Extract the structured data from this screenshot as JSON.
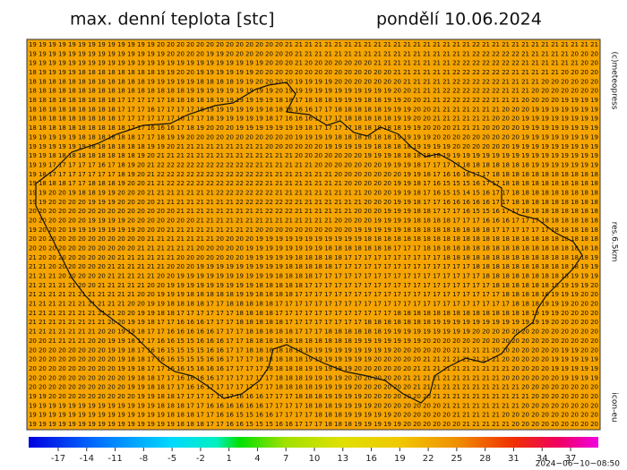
{
  "header": {
    "title": "max. denní teplota [stc]",
    "date": "pondělí 10.06.2024"
  },
  "side_labels": {
    "copyright": "(c)meteopress",
    "resolution": "res.6.5km",
    "model": "icon-eu"
  },
  "timestamp": "2024−06−10−08:50",
  "colorbar_ticks": [
    -17,
    -14,
    -11,
    -8,
    -5,
    -2,
    1,
    4,
    7,
    10,
    13,
    16,
    19,
    22,
    25,
    28,
    31,
    34,
    37
  ],
  "grid_rows": [
    "19 19 19 19 19 19 19 19 19 19 19 19 19 20 20 20 20 20 20 20 20 20 20 20 20 20 21 21 21 21 21 21 21 21 21 21 21 21 21 21 21 21 21 21 21 22 21 21 21 21 21 21 21 21 21 21 21 21",
    "19 19 19 19 19 19 19 19 19 19 19 19 19 19 20 20 20 20 19 19 20 20 20 20 20 20 20 21 21 21 21 21 21 21 21 21 21 21 21 21 21 21 21 21 21 22 22 22 22 22 21 21 21 21 21 20 20 20",
    "19 19 19 19 19 19 19 19 19 19 19 19 19 19 19 19 19 19 19 19 19 19 19 19 20 20 20 21 20 20 20 20 20 20 20 21 21 21 21 21 21 21 21 22 22 22 22 22 22 22 21 21 21 21 21 21 20 20",
    "18 19 19 19 19 18 18 18 18 18 18 18 18 19 19 20 20 19 19 19 19 19 19 20 20 20 20 20 20 20 20 20 20 20 20 20 20 21 21 21 21 21 21 22 22 22 22 22 22 21 21 21 21 21 20 20 20 20",
    "18 18 18 18 18 18 18 18 18 18 18 18 19 19 19 19 19 18 18 18 18 19 19 20 20 20 20 19 19 19 19 20 20 20 20 20 20 20 21 21 21 21 21 22 22 22 22 22 21 21 21 21 20 20 20 20 20 20",
    "18 18 18 18 18 18 18 18 18 18 18 18 18 18 18 18 19 19 19 19 19 19 19 19 19 20 19 19 19 19 19 19 19 19 19 19 19 20 20 21 21 21 22 22 22 22 22 22 21 21 21 20 20 20 20 20 20 20",
    "18 18 18 18 18 18 18 18 18 17 17 17 17 17 18 18 18 18 18 19 19 19 19 19 19 18 18 17 18 18 18 19 19 19 18 18 19 19 20 20 21 21 22 22 22 22 22 21 21 21 20 20 20 20 19 19 19 19",
    "18 18 18 18 18 18 18 18 18 17 17 17 16 17 17 17 17 18 19 19 19 19 19 19 18 18 16 16 16 17 17 18 18 18 18 18 19 19 19 20 20 21 21 21 21 21 21 21 20 20 20 19 19 19 19 19 19 19",
    "18 18 18 18 18 18 18 18 18 17 17 17 17 17 17 16 17 17 18 19 19 19 19 19 18 17 16 16 16 17 17 17 18 18 18 18 18 19 19 20 20 21 21 21 21 21 21 20 20 20 19 19 19 19 19 19 19 19",
    "18 18 18 18 18 18 18 18 18 18 17 17 16 16 16 17 18 19 20 20 20 19 19 19 19 19 19 19 18 17 17 17 17 18 18 18 18 18 19 19 20 20 20 21 21 21 20 20 20 20 19 19 19 19 19 19 19 19",
    "19 19 19 19 19 18 18 18 18 18 18 17 17 18 19 19 20 20 20 20 20 20 20 20 20 20 20 19 19 19 19 18 18 18 18 18 18 19 19 19 19 20 20 20 20 20 20 20 20 20 19 19 19 19 19 19 19 19",
    "19 19 19 19 19 19 18 18 18 18 18 18 19 19 20 21 21 21 21 21 21 21 21 21 20 20 20 20 20 20 19 19 19 19 19 18 18 18 18 19 19 19 19 20 20 20 20 20 20 19 19 19 19 19 19 19 19 19",
    "19 19 18 18 18 18 18 18 18 18 18 19 20 21 21 21 21 21 21 21 21 21 21 21 21 21 21 20 20 20 20 20 20 20 19 19 19 18 18 18 18 18 19 19 19 19 19 19 19 19 19 19 19 19 19 19 19 19",
    "19 19 17 17 17 17 17 16 17 18 19 20 21 22 22 22 22 22 22 22 22 22 22 21 21 21 21 21 21 20 20 20 20 20 20 20 19 19 19 18 17 17 17 17 18 18 18 18 18 18 18 19 19 19 19 19 19 19",
    "19 18 17 17 17 17 17 17 17 18 19 20 21 22 22 22 22 22 22 22 22 22 22 22 21 21 21 21 21 21 21 20 20 20 20 20 20 20 19 19 18 17 16 16 16 17 17 18 18 18 18 18 18 18 18 18 18 18",
    "19 18 18 18 17 17 18 18 18 19 20 20 21 21 22 22 22 22 22 22 22 22 22 22 21 21 21 21 21 21 21 21 20 20 20 20 20 19 19 18 17 16 15 15 15 16 17 17 18 18 18 18 18 18 18 18 18 18",
    "19 19 20 20 19 18 18 19 19 20 20 20 21 21 21 21 21 21 21 22 22 22 22 22 22 21 21 21 21 21 21 21 21 21 20 20 20 19 19 18 17 16 15 15 14 15 16 17 17 18 18 18 18 18 18 18 18 18",
    "19 19 20 20 20 20 19 19 19 20 20 20 20 21 21 21 21 21 21 21 21 22 22 22 22 22 22 21 21 21 21 21 21 21 20 20 20 19 19 18 17 17 16 16 16 16 16 17 17 18 18 18 18 18 18 18 18 18",
    "20 20 20 20 20 20 20 20 20 20 20 20 20 20 20 21 21 21 21 21 21 21 21 21 22 22 22 21 21 21 21 21 21 20 20 20 19 19 19 18 18 17 17 17 16 15 15 16 17 17 18 18 18 18 18 18 18 18",
    "20 20 20 20 20 20 19 19 19 19 20 20 20 20 20 20 20 21 21 21 21 21 21 21 21 21 21 21 21 21 21 20 20 20 20 19 19 19 19 18 18 18 18 17 17 17 16 16 16 17 17 17 18 18 18 18 18 18",
    "19 20 20 20 19 19 19 19 19 19 19 20 20 20 21 21 21 21 21 21 21 21 21 20 20 20 20 20 20 20 20 20 20 19 19 19 19 19 18 18 18 18 18 18 18 18 18 17 17 17 17 17 17 18 18 18 18 18",
    "20 20 20 20 20 20 20 20 20 20 20 20 21 21 21 21 21 21 21 20 20 20 20 19 19 19 19 19 19 19 19 19 19 19 18 18 18 18 18 18 18 18 18 18 18 18 18 18 18 18 18 18 18 18 18 18 18 18",
    "20 20 20 20 20 20 20 20 20 20 20 21 21 21 21 21 21 20 20 20 20 20 19 19 19 19 19 19 19 19 18 18 18 18 18 18 18 17 17 17 18 18 18 18 18 18 18 18 18 18 18 18 18 18 18 18 18 18",
    "21 20 20 20 20 20 20 20 20 21 21 21 21 21 21 20 20 20 20 20 20 20 19 19 19 19 19 18 18 18 18 18 17 17 17 17 17 17 17 17 17 17 18 18 18 18 18 18 18 18 18 18 18 18 18 18 18 19",
    "21 21 20 20 20 20 20 20 21 21 21 21 21 21 20 20 20 19 19 19 19 19 19 19 19 19 18 18 18 18 18 17 17 17 17 17 17 17 17 17 17 17 17 17 17 18 18 18 18 18 18 18 18 18 18 18 19 19",
    "21 21 21 20 20 20 20 20 21 21 21 21 21 20 20 19 19 19 19 19 19 19 19 19 19 18 18 18 18 17 17 17 17 17 17 17 17 17 17 17 17 17 17 17 17 17 18 18 18 18 18 18 18 18 18 19 19 19",
    "21 21 21 21 21 20 20 21 21 21 21 21 20 20 19 19 19 19 19 19 19 19 19 18 18 18 18 18 17 17 17 17 17 17 17 17 17 17 17 17 17 17 17 17 17 17 17 18 18 18 18 18 18 18 19 19 19 20",
    "21 21 21 21 21 21 21 21 21 21 21 20 20 19 19 19 18 18 18 18 18 19 19 18 18 18 18 17 17 17 17 17 17 17 17 17 17 17 17 17 17 17 17 17 17 17 17 17 18 18 18 18 18 19 19 19 20 20",
    "21 21 21 21 21 21 21 21 21 21 20 20 19 19 18 18 18 18 17 17 18 18 18 18 18 17 17 17 17 17 17 17 17 17 17 17 17 17 17 17 17 17 17 17 17 17 17 17 17 18 18 18 19 19 19 20 20 20",
    "21 21 21 21 21 21 21 21 21 20 20 19 19 18 18 17 17 17 17 17 17 18 18 18 18 17 17 17 17 17 17 17 17 17 17 17 17 18 18 18 18 18 18 18 18 18 18 18 18 18 18 19 19 19 20 20 20 20",
    "21 21 21 21 21 21 21 21 20 20 19 19 18 17 17 16 16 16 17 17 17 18 18 18 18 18 17 17 17 17 17 17 17 17 18 18 18 18 18 18 18 19 19 19 19 19 19 19 19 19 19 19 19 20 20 20 20 20",
    "21 21 21 21 21 21 21 20 20 19 19 18 17 17 16 16 16 16 16 17 17 17 18 18 18 18 18 17 17 17 18 18 18 18 18 18 19 19 19 19 19 19 19 19 19 20 20 20 20 20 20 20 20 20 20 20 20 20",
    "20 20 21 21 21 21 20 20 19 19 18 17 17 16 16 15 15 16 16 16 17 17 18 18 18 18 18 18 18 18 18 18 18 19 19 19 19 19 19 19 20 20 20 20 20 20 20 20 20 20 20 20 20 20 20 20 20 20",
    "20 20 20 20 20 20 20 20 19 19 18 17 16 16 15 15 15 15 16 16 17 17 18 18 18 18 18 18 18 19 19 19 19 19 19 19 19 20 20 20 20 20 20 21 21 21 21 20 20 20 20 20 20 20 19 19 20 20",
    "20 20 20 20 20 20 20 20 20 19 18 18 17 16 16 15 15 15 16 16 17 17 17 18 18 18 18 18 19 19 19 19 19 19 19 20 20 20 20 20 21 21 21 21 21 21 21 21 20 20 20 20 20 19 19 19 19 19",
    "20 20 20 20 20 20 20 20 20 19 19 18 17 17 16 16 15 16 16 16 17 17 17 17 18 18 18 18 19 19 19 19 19 20 20 20 20 20 20 21 21 21 21 21 21 21 21 21 21 20 20 20 20 19 19 19 19 19",
    "20 20 20 20 20 20 20 20 20 20 19 18 18 17 17 16 16 16 16 17 17 17 17 17 17 18 18 18 19 19 19 19 20 20 20 20 20 20 21 21 21 21 21 21 21 21 21 21 20 20 20 20 20 20 19 19 19 19",
    "20 20 20 20 20 20 20 20 20 20 19 19 18 18 17 17 16 16 17 17 17 17 17 17 17 18 18 18 18 19 19 19 19 20 20 20 20 20 20 21 21 21 21 21 21 21 21 21 21 21 20 20 20 20 20 20 20 20",
    "19 19 20 20 20 20 20 20 20 20 20 19 19 18 18 17 17 17 17 17 17 16 16 16 17 17 17 18 18 18 19 19 19 19 20 20 20 20 20 20 20 21 21 21 21 21 21 21 21 21 21 20 20 20 20 20 20 20",
    "19 19 19 19 19 19 19 19 19 19 19 19 19 18 18 18 17 17 16 16 16 16 16 16 17 17 17 17 18 18 18 19 19 19 19 20 20 20 20 20 20 20 21 21 21 21 21 21 21 21 20 20 20 20 20 20 20 20",
    "19 19 19 19 19 19 19 19 19 19 19 19 19 19 18 18 18 17 17 16 16 15 15 16 16 17 17 17 17 18 18 18 19 19 19 19 19 20 20 20 20 20 20 21 21 21 21 21 20 20 20 20 20 20 20 20 20 20",
    "19 19 19 19 19 19 19 19 19 19 19 19 19 19 19 18 18 18 17 17 16 16 15 15 15 16 16 17 17 17 18 18 18 19 19 19 19 19 20 20 20 20 20 20 21 21 21 21 21 20 20 20 20 20 20 20 20 20"
  ]
}
